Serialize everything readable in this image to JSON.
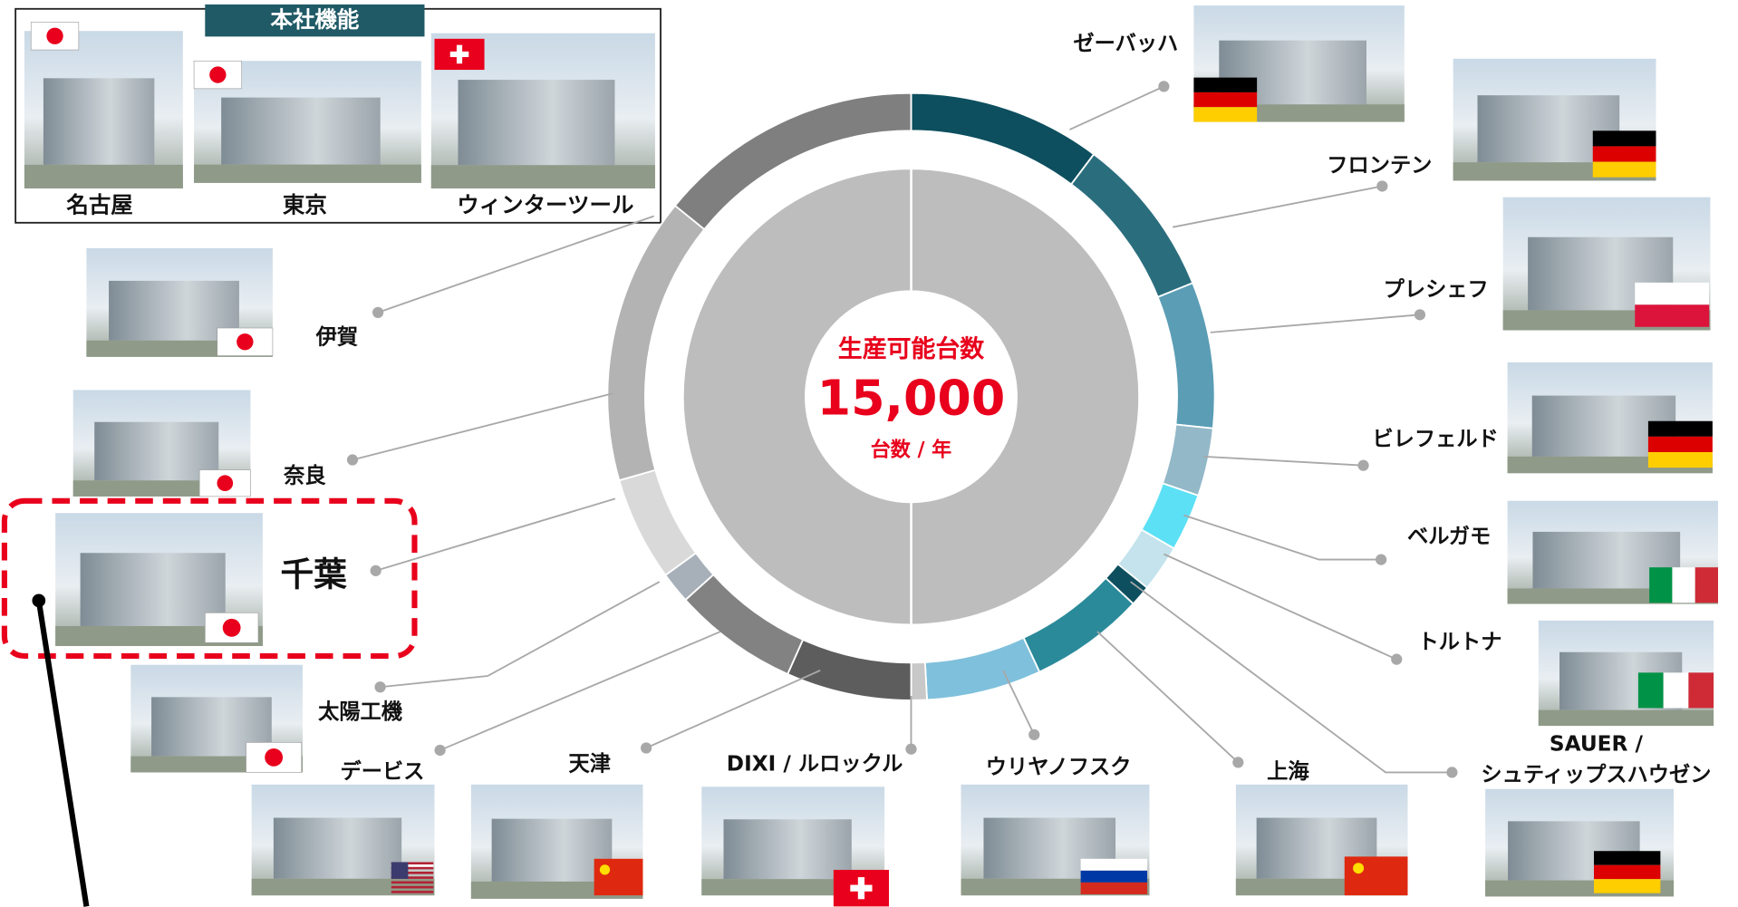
{
  "hq": {
    "title": "本社機能",
    "sites": [
      {
        "label": "名古屋"
      },
      {
        "label": "東京"
      },
      {
        "label": "ウィンターツール"
      }
    ]
  },
  "center": {
    "caption": "生産可能台数",
    "value": "15,000",
    "unit": "台数 / 年"
  },
  "plants": [
    {
      "label": "ゼーバッハ"
    },
    {
      "label": "フロンテン"
    },
    {
      "label": "プレシェフ"
    },
    {
      "label": "ビレフェルド"
    },
    {
      "label": "ベルガモ"
    },
    {
      "label": "トルトナ"
    },
    {
      "label": [
        "SAUER /",
        "シュティップスハウゼン"
      ]
    },
    {
      "label": "上海"
    },
    {
      "label": "ウリヤノフスク"
    },
    {
      "label": "DIXI / ルロックル"
    },
    {
      "label": "天津"
    },
    {
      "label": "デービス"
    },
    {
      "label": "太陽工機"
    },
    {
      "label": "千葉"
    },
    {
      "label": "奈良"
    },
    {
      "label": "伊賀"
    }
  ]
}
